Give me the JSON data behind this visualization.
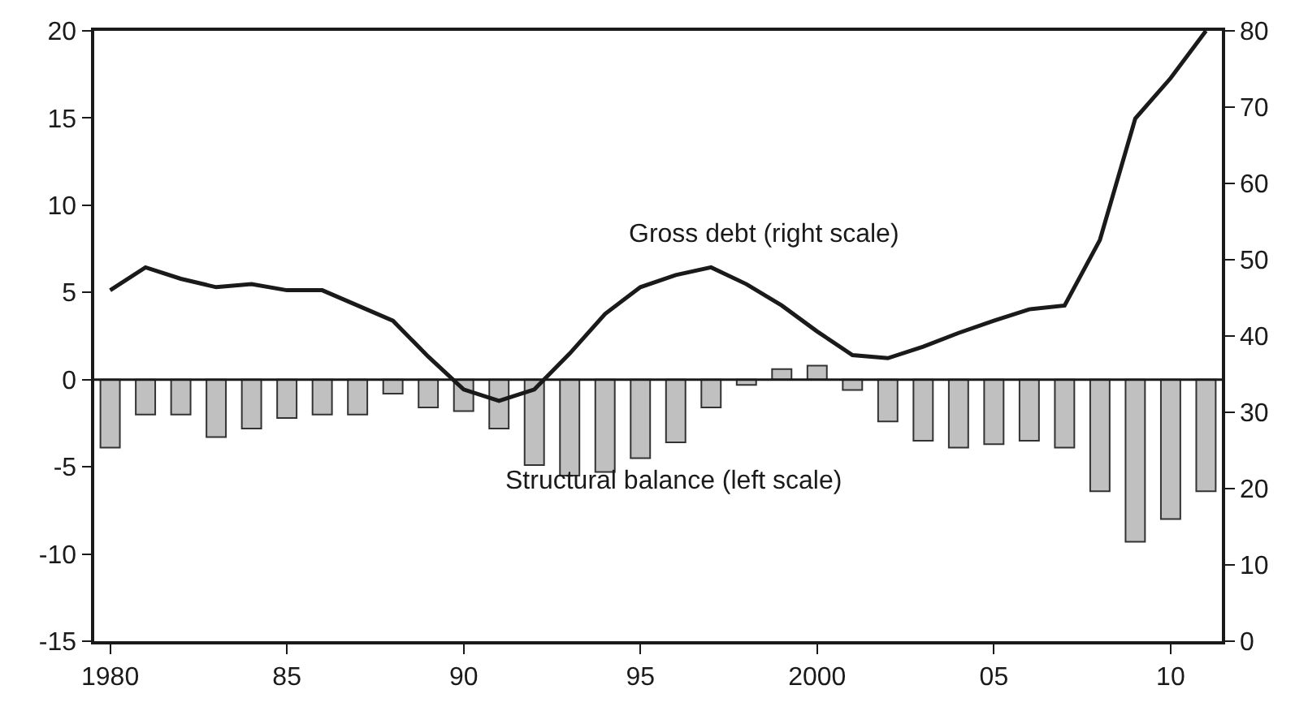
{
  "chart_data": {
    "type": "bar",
    "x": [
      1980,
      1981,
      1982,
      1983,
      1984,
      1985,
      1986,
      1987,
      1988,
      1989,
      1990,
      1991,
      1992,
      1993,
      1994,
      1995,
      1996,
      1997,
      1998,
      1999,
      2000,
      2001,
      2002,
      2003,
      2004,
      2005,
      2006,
      2007,
      2008,
      2009,
      2010,
      2011
    ],
    "series": [
      {
        "color": "#c0c0c0",
        "values": [
          -3.9,
          -2.0,
          -2.0,
          -3.3,
          -2.8,
          -2.2,
          -2.0,
          -2.0,
          -0.8,
          -1.6,
          -1.8,
          -2.8,
          -4.9,
          -5.5,
          -5.3,
          -4.5,
          -3.6,
          -1.6,
          -0.3,
          0.6,
          0.8,
          -0.6,
          -2.4,
          -3.5,
          -3.9,
          -3.7,
          -3.5,
          -3.9,
          -6.4,
          -9.3,
          -8.0,
          -6.4
        ]
      },
      {
        "type": "line",
        "axis": "y2",
        "color": "#1a1a1a",
        "values": [
          46,
          49,
          47.5,
          46.4,
          46.8,
          46,
          46,
          44,
          42,
          37.3,
          33,
          31.5,
          33,
          37.7,
          42.9,
          46.4,
          48,
          49,
          46.8,
          44,
          40.6,
          37.5,
          37.1,
          38.6,
          40.4,
          42,
          43.5,
          44,
          52.6,
          68.5,
          73.8,
          80
        ]
      }
    ],
    "annotations": [
      "Gross debt (right scale)",
      "Structural balance (left scale)"
    ],
    "ref_lines": [
      {
        "axis": "y",
        "value": 0,
        "color": "#1a1a1a"
      }
    ],
    "xlim": [
      1979.55,
      2011.45
    ],
    "xticks": [
      1980,
      {
        "value": 1985,
        "label": "85"
      },
      {
        "value": 1990,
        "label": "90"
      },
      {
        "value": 1995,
        "label": "95"
      },
      2000,
      {
        "value": 2005,
        "label": "05"
      },
      {
        "value": 2010,
        "label": "10"
      }
    ],
    "ylim": [
      -15,
      20
    ],
    "yticks": [
      -15,
      -10,
      -5,
      0,
      5,
      10,
      15,
      20
    ],
    "y2lim": [
      0,
      80
    ],
    "y2ticks": [
      0,
      10,
      20,
      30,
      40,
      50,
      60,
      70,
      80
    ],
    "marker": "none",
    "line_style": "solid"
  }
}
